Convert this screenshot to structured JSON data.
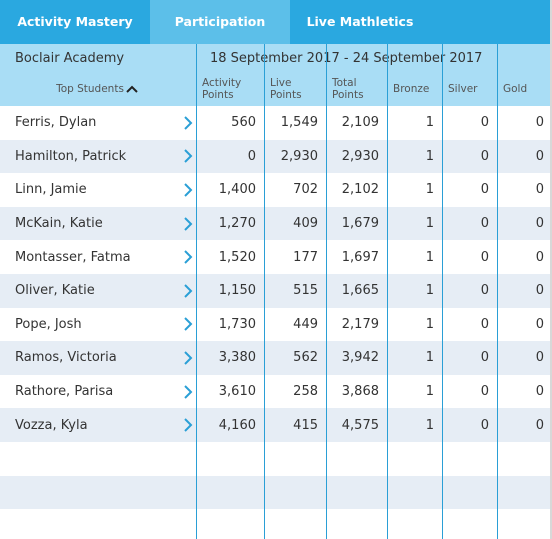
{
  "tabs": [
    "Activity Mastery",
    "Participation",
    "Live Mathletics"
  ],
  "active_tab": 1,
  "header": {
    "school": "Boclair Academy",
    "date_range": "18 September 2017 - 24 September 2017"
  },
  "columns": [
    "Top Students",
    "Activity Points",
    "Live Points",
    "Total Points",
    "Bronze",
    "Silver",
    "Gold"
  ],
  "table": {
    "rows": [
      [
        "Ferris, Dylan",
        "560",
        "1,549",
        "2,109",
        "1",
        "0",
        "0"
      ],
      [
        "Hamilton, Patrick",
        "0",
        "2,930",
        "2,930",
        "1",
        "0",
        "0"
      ],
      [
        "Linn, Jamie",
        "1,400",
        "702",
        "2,102",
        "1",
        "0",
        "0"
      ],
      [
        "McKain, Katie",
        "1,270",
        "409",
        "1,679",
        "1",
        "0",
        "0"
      ],
      [
        "Montasser, Fatma",
        "1,520",
        "177",
        "1,697",
        "1",
        "0",
        "0"
      ],
      [
        "Oliver, Katie",
        "1,150",
        "515",
        "1,665",
        "1",
        "0",
        "0"
      ],
      [
        "Pope, Josh",
        "1,730",
        "449",
        "2,179",
        "1",
        "0",
        "0"
      ],
      [
        "Ramos, Victoria",
        "3,380",
        "562",
        "3,942",
        "1",
        "0",
        "0"
      ],
      [
        "Rathore, Parisa",
        "3,610",
        "258",
        "3,868",
        "1",
        "0",
        "0"
      ],
      [
        "Vozza, Kyla",
        "4,160",
        "415",
        "4,575",
        "1",
        "0",
        "0"
      ]
    ]
  }
}
